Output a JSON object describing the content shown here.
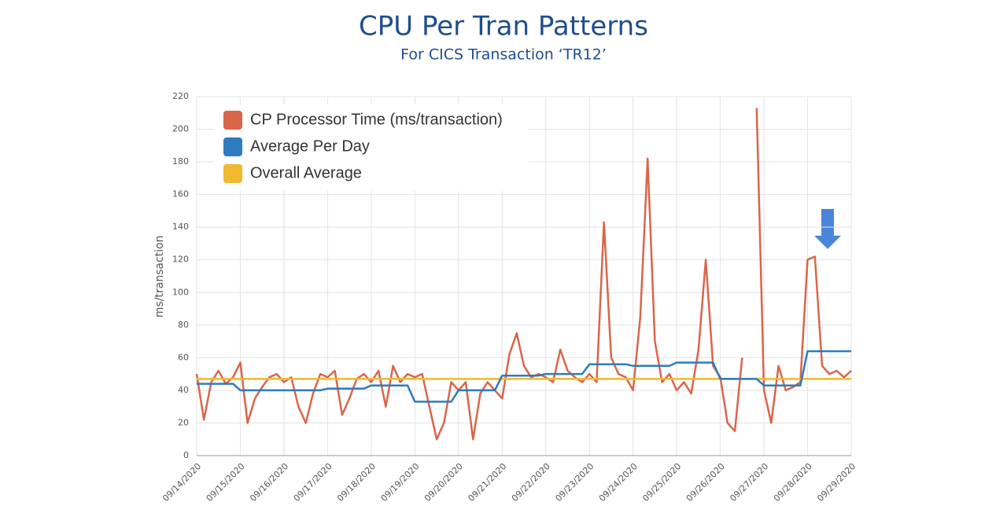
{
  "chart_data": {
    "type": "line",
    "title": "CPU Per Tran Patterns",
    "subtitle": "For CICS Transaction ‘TR12’",
    "y_label": "ms/transaction",
    "categories": [
      "09/14/2020",
      null,
      null,
      null,
      null,
      null,
      "09/15/2020",
      null,
      null,
      null,
      null,
      null,
      "09/16/2020",
      null,
      null,
      null,
      null,
      null,
      "09/17/2020",
      null,
      null,
      null,
      null,
      null,
      "09/18/2020",
      null,
      null,
      null,
      null,
      null,
      "09/19/2020",
      null,
      null,
      null,
      null,
      null,
      "09/20/2020",
      null,
      null,
      null,
      null,
      null,
      "09/21/2020",
      null,
      null,
      null,
      null,
      null,
      "09/22/2020",
      null,
      null,
      null,
      null,
      null,
      "09/23/2020",
      null,
      null,
      null,
      null,
      null,
      "09/24/2020",
      null,
      null,
      null,
      null,
      null,
      "09/25/2020",
      null,
      null,
      null,
      null,
      null,
      "09/26/2020",
      null,
      null,
      null,
      null,
      null,
      "09/27/2020",
      null,
      null,
      null,
      null,
      null,
      "09/28/2020",
      null,
      null,
      null,
      null,
      null,
      "09/29/2020"
    ],
    "series": [
      {
        "name": "CP Processor Time (ms/transaction)",
        "color": "#d9664a",
        "values": [
          50,
          22,
          45,
          52,
          44,
          48,
          57,
          20,
          35,
          42,
          48,
          50,
          45,
          48,
          30,
          20,
          38,
          50,
          48,
          52,
          25,
          35,
          47,
          50,
          45,
          52,
          30,
          55,
          45,
          50,
          48,
          50,
          30,
          10,
          20,
          45,
          40,
          45,
          10,
          38,
          45,
          40,
          35,
          62,
          75,
          55,
          48,
          50,
          48,
          45,
          65,
          52,
          48,
          45,
          50,
          45,
          143,
          60,
          50,
          48,
          40,
          85,
          182,
          70,
          45,
          50,
          40,
          45,
          38,
          65,
          120,
          55,
          48,
          20,
          15,
          60,
          null,
          213,
          40,
          20,
          55,
          40,
          42,
          45,
          120,
          122,
          55,
          50,
          52,
          48,
          52
        ]
      },
      {
        "name": "Average Per Day",
        "color": "#2e7bbf",
        "values": [
          44,
          44,
          44,
          44,
          44,
          44,
          40,
          40,
          40,
          40,
          40,
          40,
          40,
          40,
          40,
          40,
          40,
          40,
          41,
          41,
          41,
          41,
          41,
          41,
          43,
          43,
          43,
          43,
          43,
          43,
          33,
          33,
          33,
          33,
          33,
          33,
          40,
          40,
          40,
          40,
          40,
          40,
          49,
          49,
          49,
          49,
          49,
          49,
          50,
          50,
          50,
          50,
          50,
          50,
          56,
          56,
          56,
          56,
          56,
          56,
          55,
          55,
          55,
          55,
          55,
          55,
          57,
          57,
          57,
          57,
          57,
          57,
          47,
          47,
          47,
          47,
          47,
          47,
          43,
          43,
          43,
          43,
          43,
          43,
          64,
          64,
          64,
          64,
          64,
          64,
          64
        ]
      },
      {
        "name": "Overall Average",
        "color": "#f0b92f",
        "values": [
          47,
          47,
          47,
          47,
          47,
          47,
          47,
          47,
          47,
          47,
          47,
          47,
          47,
          47,
          47,
          47,
          47,
          47,
          47,
          47,
          47,
          47,
          47,
          47,
          47,
          47,
          47,
          47,
          47,
          47,
          47,
          47,
          47,
          47,
          47,
          47,
          47,
          47,
          47,
          47,
          47,
          47,
          47,
          47,
          47,
          47,
          47,
          47,
          47,
          47,
          47,
          47,
          47,
          47,
          47,
          47,
          47,
          47,
          47,
          47,
          47,
          47,
          47,
          47,
          47,
          47,
          47,
          47,
          47,
          47,
          47,
          47,
          47,
          47,
          47,
          47,
          47,
          47,
          47,
          47,
          47,
          47,
          47,
          47,
          47,
          47,
          47,
          47,
          47,
          47,
          47
        ]
      }
    ],
    "ylim": [
      0,
      220
    ],
    "yticks": [
      0,
      20,
      40,
      60,
      80,
      100,
      120,
      140,
      160,
      180,
      200,
      220
    ],
    "grid": true,
    "legend": "top-left"
  }
}
